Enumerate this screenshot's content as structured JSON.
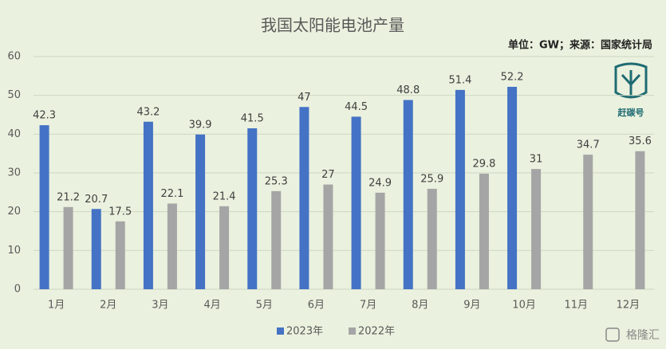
{
  "chart_data": {
    "type": "bar",
    "title": "我国太阳能电池产量",
    "subtitle": "单位：GW；来源：国家统计局",
    "categories": [
      "1月",
      "2月",
      "3月",
      "4月",
      "5月",
      "6月",
      "7月",
      "8月",
      "9月",
      "10月",
      "11月",
      "12月"
    ],
    "series": [
      {
        "name": "2023年",
        "color": "#4472c4",
        "values": [
          42.3,
          20.7,
          43.2,
          39.9,
          41.5,
          47,
          44.5,
          48.8,
          51.4,
          52.2,
          null,
          null
        ]
      },
      {
        "name": "2022年",
        "color": "#a5a5a5",
        "values": [
          21.2,
          17.5,
          22.1,
          21.4,
          25.3,
          27,
          24.9,
          25.9,
          29.8,
          31,
          34.7,
          35.6
        ]
      }
    ],
    "ylim": [
      0,
      60
    ],
    "yticks": [
      0,
      10,
      20,
      30,
      40,
      50,
      60
    ],
    "grid": true,
    "legend": "bottom",
    "watermarks": [
      "赶碳号",
      "格隆汇"
    ]
  }
}
